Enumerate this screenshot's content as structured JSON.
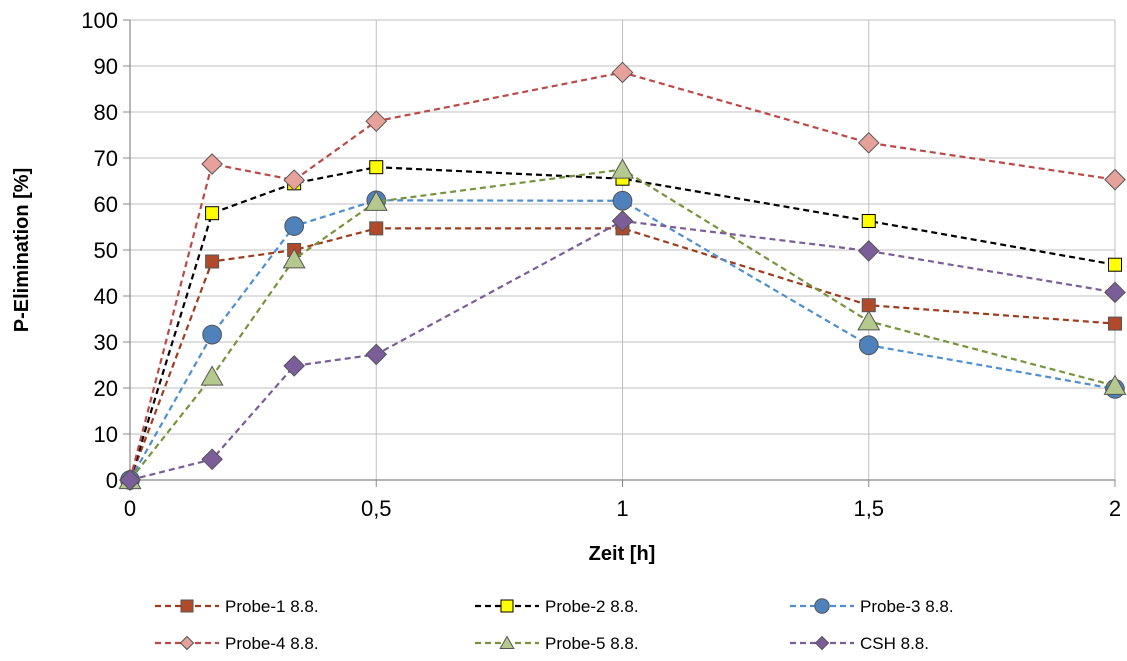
{
  "chart_data": {
    "type": "line",
    "title": "",
    "xlabel": "Zeit [h]",
    "ylabel": "P-Elimination [%]",
    "xlim": [
      0,
      2
    ],
    "ylim": [
      0,
      100
    ],
    "x_ticks": [
      "0",
      "0,5",
      "1",
      "1,5",
      "2"
    ],
    "x_tick_values": [
      0,
      0.5,
      1,
      1.5,
      2
    ],
    "y_ticks": [
      "0",
      "10",
      "20",
      "30",
      "40",
      "50",
      "60",
      "70",
      "80",
      "90",
      "100"
    ],
    "y_tick_values": [
      0,
      10,
      20,
      30,
      40,
      50,
      60,
      70,
      80,
      90,
      100
    ],
    "grid": true,
    "legend_position": "bottom",
    "x": [
      0,
      0.1667,
      0.3333,
      0.5,
      1,
      1.5,
      2
    ],
    "series": [
      {
        "name": "Probe-1 8.8.",
        "color": "#9e3c1e",
        "fill": "#b04a2a",
        "marker": "square",
        "values": [
          0,
          47.5,
          50,
          54.7,
          54.7,
          38,
          34
        ]
      },
      {
        "name": "Probe-2 8.8.",
        "color": "#000000",
        "fill": "#ffff00",
        "marker": "square",
        "values": [
          0,
          58,
          64.5,
          68,
          65.5,
          56.3,
          46.8
        ]
      },
      {
        "name": "Probe-3 8.8.",
        "color": "#4f8fd0",
        "fill": "#4f81bd",
        "marker": "circle",
        "values": [
          0,
          31.6,
          55.2,
          60.8,
          60.7,
          29.3,
          19.8
        ]
      },
      {
        "name": "Probe-4 8.8.",
        "color": "#b94a48",
        "fill": "#e6a19a",
        "marker": "diamond",
        "values": [
          0,
          68.7,
          65.2,
          78,
          88.6,
          73.3,
          65.3
        ]
      },
      {
        "name": "Probe-5 8.8.",
        "color": "#77933c",
        "fill": "#b5c98e",
        "marker": "triangle",
        "values": [
          0,
          22.5,
          48,
          60.5,
          67.5,
          34.5,
          20.5
        ]
      },
      {
        "name": "CSH 8.8.",
        "color": "#7b5d99",
        "fill": "#7b5d99",
        "marker": "diamond",
        "values": [
          0,
          4.5,
          24.8,
          27.3,
          56.3,
          49.8,
          40.8
        ]
      }
    ]
  }
}
